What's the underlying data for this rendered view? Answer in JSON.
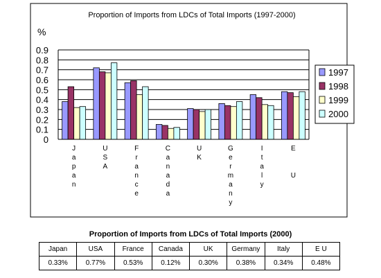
{
  "chart_data": {
    "type": "bar",
    "title": "Proportion of Imports from LDCs of Total Imports (1997-2000)",
    "ylabel": "%",
    "xlabel": "",
    "categories": [
      "Japan",
      "USA",
      "France",
      "Canada",
      "UK",
      "Germany",
      "Italy",
      "EU"
    ],
    "category_labels_vertical": [
      "Japan",
      "USA",
      "France",
      "Canada",
      "UK",
      "Germany",
      "Italy",
      "E  U"
    ],
    "ylim": [
      0,
      0.9
    ],
    "yticks": [
      "0",
      "0.1",
      "0.2",
      "0.3",
      "0.4",
      "0.5",
      "0.6",
      "0.7",
      "0.8",
      "0.9"
    ],
    "grid": true,
    "legend_position": "right",
    "series": [
      {
        "name": "1997",
        "color": "#9999ff",
        "values": [
          0.38,
          0.72,
          0.57,
          0.15,
          0.31,
          0.36,
          0.45,
          0.48
        ]
      },
      {
        "name": "1998",
        "color": "#993366",
        "values": [
          0.53,
          0.68,
          0.59,
          0.14,
          0.3,
          0.34,
          0.42,
          0.47
        ]
      },
      {
        "name": "1999",
        "color": "#ffffcc",
        "values": [
          0.32,
          0.67,
          0.45,
          0.11,
          0.28,
          0.33,
          0.35,
          0.43
        ]
      },
      {
        "name": "2000",
        "color": "#ccffff",
        "values": [
          0.33,
          0.77,
          0.53,
          0.12,
          0.3,
          0.38,
          0.34,
          0.48
        ]
      }
    ]
  },
  "table": {
    "title": "Proportion of Imports from LDCs of Total Imports (2000)",
    "headers": [
      "Japan",
      "USA",
      "France",
      "Canada",
      "UK",
      "Germany",
      "Italy",
      "E U"
    ],
    "values": [
      "0.33%",
      "0.77%",
      "0.53%",
      "0.12%",
      "0.30%",
      "0.38%",
      "0.34%",
      "0.48%"
    ]
  }
}
